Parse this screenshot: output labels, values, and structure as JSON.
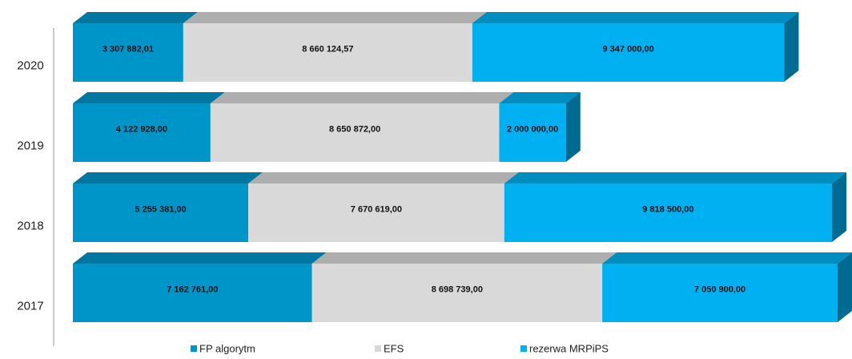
{
  "chart_data": {
    "type": "bar3d_stacked_horizontal",
    "categories": [
      "2020",
      "2019",
      "2018",
      "2017"
    ],
    "series": [
      {
        "name": "FP algorytm",
        "color": "#0095c8",
        "values": [
          3307882.01,
          4122928,
          5255381,
          7162761
        ],
        "value_labels": [
          "3 307 882,01",
          "4 122 928,00",
          "5 255 381,00",
          "7 162 761,00"
        ]
      },
      {
        "name": "EFS",
        "color": "#d9d9d9",
        "values": [
          8660124.57,
          8650872,
          7670619,
          8698739
        ],
        "value_labels": [
          "8 660 124,57",
          "8 650 872,00",
          "7 670 619,00",
          "8 698 739,00"
        ]
      },
      {
        "name": "rezerwa MRPiPS",
        "color": "#00b0f0",
        "values": [
          9347000,
          2000000,
          9818500,
          7050900
        ],
        "value_labels": [
          "9 347 000,00",
          "2 000 000,00",
          "9 818 500,00",
          "7 050 900,00"
        ]
      }
    ],
    "legend": "bottom"
  }
}
